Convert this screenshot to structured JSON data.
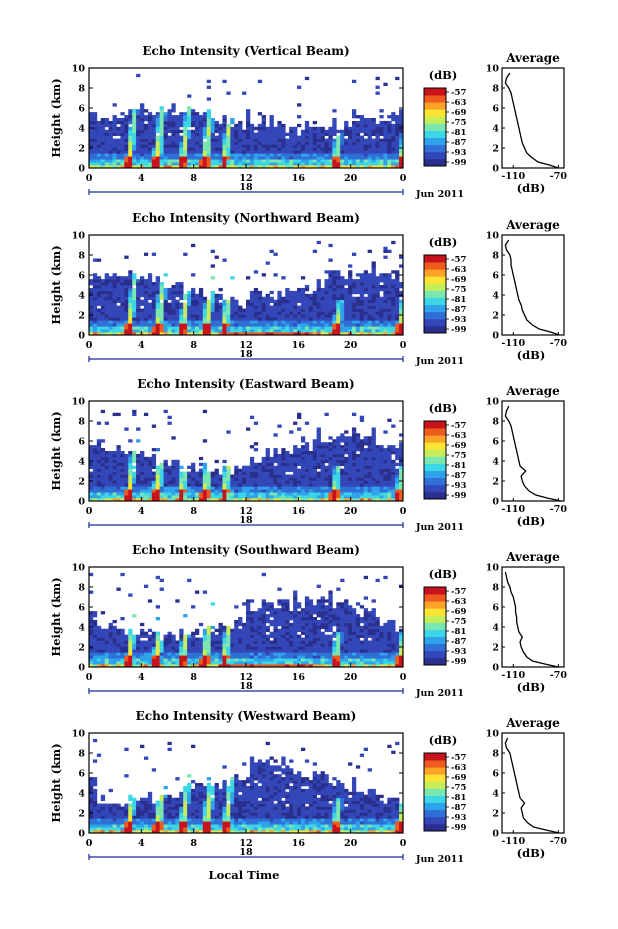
{
  "colors": {
    "colormap": [
      "#2a2e8c",
      "#3347b8",
      "#2f6fd6",
      "#2ea2ea",
      "#3dd6e6",
      "#7be7b0",
      "#c6ee5a",
      "#fbe434",
      "#fba326",
      "#ef5a1e",
      "#c8121c"
    ],
    "line": "#000000",
    "background": "#ffffff"
  },
  "shared": {
    "colorbar_unit": "(dB)",
    "colorbar_ticks": [
      "-57",
      "-63",
      "-69",
      "-75",
      "-81",
      "-87",
      "-93",
      "-99"
    ],
    "ylabel": "Height (km)",
    "y_ticks": [
      "0",
      "2",
      "4",
      "6",
      "8",
      "10"
    ],
    "x_ticks": [
      "0",
      "4",
      "8",
      "12",
      "16",
      "20",
      "0"
    ],
    "date_label": "18",
    "month_label": "Jun 2011",
    "profile_title": "Average",
    "profile_x_ticks": [
      "-110",
      "-70"
    ],
    "profile_xlabel": "(dB)",
    "xlabel": "Local Time"
  },
  "chart_data": [
    {
      "type": "heatmap",
      "title": "Echo Intensity (Vertical Beam)",
      "x_range": [
        0,
        24
      ],
      "y_range": [
        0,
        10
      ],
      "color_range_db": [
        -99,
        -57
      ],
      "plumes_hour": [
        3.0,
        5.1,
        7.1,
        8.8,
        10.3,
        18.8,
        23.8
      ],
      "profile": {
        "type": "line",
        "x_range_db": [
          -120,
          -65
        ],
        "height_km": [
          0,
          0.3,
          0.6,
          1.0,
          1.5,
          2.0,
          2.5,
          3.0,
          3.5,
          4.0,
          4.5,
          5.0,
          5.5,
          6.0,
          6.5,
          7.0,
          7.5,
          8.0,
          8.5,
          9.0,
          9.5
        ],
        "mean_db": [
          -70,
          -78,
          -88,
          -93,
          -98,
          -100,
          -102,
          -103,
          -104,
          -105,
          -106,
          -107,
          -108,
          -109,
          -110,
          -111,
          -112,
          -114,
          -117,
          -116,
          -113
        ]
      }
    },
    {
      "type": "heatmap",
      "title": "Echo Intensity (Northward Beam)",
      "x_range": [
        0,
        24
      ],
      "y_range": [
        0,
        10
      ],
      "color_range_db": [
        -99,
        -57
      ],
      "plumes_hour": [
        3.0,
        5.2,
        7.1,
        8.9,
        10.3,
        18.9,
        23.7
      ],
      "profile": {
        "type": "line",
        "x_range_db": [
          -120,
          -65
        ],
        "height_km": [
          0,
          0.3,
          0.6,
          1.0,
          1.5,
          2.0,
          2.5,
          3.0,
          3.5,
          4.0,
          4.5,
          5.0,
          5.5,
          6.0,
          6.5,
          7.0,
          7.5,
          8.0,
          8.5,
          9.0,
          9.5
        ],
        "mean_db": [
          -69,
          -77,
          -87,
          -93,
          -98,
          -100,
          -102,
          -103,
          -105,
          -106,
          -107,
          -108,
          -109,
          -110,
          -111,
          -112,
          -112,
          -113,
          -116,
          -117,
          -114
        ]
      }
    },
    {
      "type": "heatmap",
      "title": "Echo Intensity (Eastward Beam)",
      "x_range": [
        0,
        24
      ],
      "y_range": [
        0,
        10
      ],
      "color_range_db": [
        -99,
        -57
      ],
      "plumes_hour": [
        3.0,
        5.1,
        7.0,
        8.8,
        10.3,
        18.7,
        23.6
      ],
      "profile": {
        "type": "line",
        "x_range_db": [
          -120,
          -65
        ],
        "height_km": [
          0,
          0.3,
          0.6,
          1.0,
          1.5,
          2.0,
          2.5,
          3.0,
          3.5,
          4.0,
          4.5,
          5.0,
          5.5,
          6.0,
          6.5,
          7.0,
          7.5,
          8.0,
          8.5,
          9.0,
          9.5
        ],
        "mean_db": [
          -68,
          -80,
          -90,
          -96,
          -100,
          -102,
          -103,
          -99,
          -104,
          -105,
          -106,
          -107,
          -108,
          -109,
          -110,
          -111,
          -112,
          -114,
          -117,
          -116,
          -114
        ]
      }
    },
    {
      "type": "heatmap",
      "title": "Echo Intensity (Southward Beam)",
      "x_range": [
        0,
        24
      ],
      "y_range": [
        0,
        10
      ],
      "color_range_db": [
        -99,
        -57
      ],
      "plumes_hour": [
        3.0,
        5.1,
        7.1,
        8.8,
        10.3,
        18.8,
        23.7
      ],
      "profile": {
        "type": "line",
        "x_range_db": [
          -120,
          -65
        ],
        "height_km": [
          0,
          0.3,
          0.6,
          1.0,
          1.5,
          2.0,
          2.5,
          3.0,
          3.5,
          4.0,
          4.5,
          5.0,
          5.5,
          6.0,
          6.5,
          7.0,
          7.5,
          8.0,
          8.5,
          9.0,
          9.5
        ],
        "mean_db": [
          -70,
          -82,
          -93,
          -98,
          -101,
          -103,
          -104,
          -102,
          -105,
          -106,
          -107,
          -107,
          -108,
          -108,
          -109,
          -110,
          -112,
          -113,
          -115,
          -116,
          -117
        ]
      }
    },
    {
      "type": "heatmap",
      "title": "Echo Intensity (Westward Beam)",
      "x_range": [
        0,
        24
      ],
      "y_range": [
        0,
        10
      ],
      "color_range_db": [
        -99,
        -57
      ],
      "plumes_hour": [
        3.0,
        5.2,
        7.1,
        8.9,
        10.4,
        18.8,
        23.7
      ],
      "profile": {
        "type": "line",
        "x_range_db": [
          -120,
          -65
        ],
        "height_km": [
          0,
          0.3,
          0.6,
          1.0,
          1.5,
          2.0,
          2.5,
          3.0,
          3.5,
          4.0,
          4.5,
          5.0,
          5.5,
          6.0,
          6.5,
          7.0,
          7.5,
          8.0,
          8.5,
          9.0,
          9.5
        ],
        "mean_db": [
          -69,
          -81,
          -92,
          -97,
          -101,
          -102,
          -103,
          -100,
          -104,
          -105,
          -106,
          -107,
          -108,
          -109,
          -110,
          -111,
          -112,
          -113,
          -116,
          -117,
          -115
        ]
      }
    }
  ]
}
